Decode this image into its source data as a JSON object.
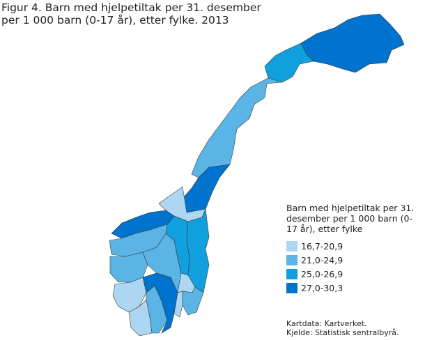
{
  "title_line1": "Figur 4. Barn med hjelpetiltak per 31. desember",
  "title_line2": "per 1 000 barn (0-17 år), etter fylke. 2013",
  "legend": {
    "title": "Barn med hjelpetiltak per 31. desember per 1 000 barn (0-17 år), etter fylke",
    "classes": [
      {
        "label": "16,7-20,9",
        "color": "#acd6f2"
      },
      {
        "label": "21,0-24,9",
        "color": "#5ab5e6"
      },
      {
        "label": "25,0-26,9",
        "color": "#0fa0dd"
      },
      {
        "label": "27,0-30,3",
        "color": "#0073cf"
      }
    ]
  },
  "regions": [
    {
      "id": "finnmark",
      "class": 3
    },
    {
      "id": "troms",
      "class": 2
    },
    {
      "id": "nordland",
      "class": 1
    },
    {
      "id": "nord-trondelag",
      "class": 3
    },
    {
      "id": "sor-trondelag",
      "class": 0
    },
    {
      "id": "more-og-romsdal",
      "class": 3
    },
    {
      "id": "sogn-og-fjordane",
      "class": 1
    },
    {
      "id": "hordaland",
      "class": 1
    },
    {
      "id": "rogaland",
      "class": 0
    },
    {
      "id": "vest-agder",
      "class": 0
    },
    {
      "id": "aust-agder",
      "class": 1
    },
    {
      "id": "telemark",
      "class": 3
    },
    {
      "id": "buskerud",
      "class": 1
    },
    {
      "id": "oppland",
      "class": 2
    },
    {
      "id": "hedmark",
      "class": 2
    },
    {
      "id": "akershus",
      "class": 0
    },
    {
      "id": "ostfold",
      "class": 1
    },
    {
      "id": "vestfold",
      "class": 0
    }
  ],
  "source_line1": "Kartdata: Kartverket.",
  "source_line2": "Kjelde: Statistisk sentralbyrå."
}
